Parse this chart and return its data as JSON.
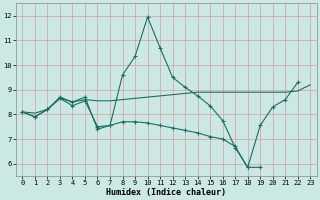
{
  "xlabel": "Humidex (Indice chaleur)",
  "bg_color": "#cce8e4",
  "grid_color": "#d4a0a0",
  "line_color": "#1a6e62",
  "xlim": [
    -0.5,
    23.5
  ],
  "ylim": [
    5.5,
    12.5
  ],
  "yticks": [
    6,
    7,
    8,
    9,
    10,
    11,
    12
  ],
  "xticks": [
    0,
    1,
    2,
    3,
    4,
    5,
    6,
    7,
    8,
    9,
    10,
    11,
    12,
    13,
    14,
    15,
    16,
    17,
    18,
    19,
    20,
    21,
    22,
    23
  ],
  "line1_x": [
    0,
    1,
    2,
    3,
    4,
    5,
    6,
    7,
    8,
    9,
    10,
    11,
    12,
    13,
    14,
    15,
    16,
    17,
    18,
    19,
    20,
    21,
    22
  ],
  "line1_y": [
    8.1,
    7.9,
    8.2,
    8.7,
    8.5,
    8.7,
    7.4,
    7.55,
    9.6,
    10.35,
    11.95,
    10.7,
    9.5,
    9.1,
    8.75,
    8.35,
    7.75,
    6.65,
    5.85,
    7.55,
    8.3,
    8.6,
    9.3
  ],
  "line2_x": [
    0,
    1,
    2,
    3,
    4,
    5,
    6,
    7,
    8,
    9,
    10,
    11,
    12,
    13,
    14,
    15,
    16,
    17,
    18,
    19,
    20,
    21,
    22,
    23
  ],
  "line2_y": [
    8.1,
    8.05,
    8.2,
    8.65,
    8.5,
    8.6,
    8.55,
    8.55,
    8.6,
    8.65,
    8.7,
    8.75,
    8.8,
    8.85,
    8.9,
    8.9,
    8.9,
    8.9,
    8.9,
    8.9,
    8.9,
    8.9,
    8.95,
    9.2
  ],
  "line3_x": [
    0,
    1,
    2,
    3,
    4,
    5,
    6,
    7,
    8,
    9,
    10,
    11,
    12,
    13,
    14,
    15,
    16,
    17,
    18,
    19,
    20,
    21,
    22,
    23
  ],
  "line3_y": [
    8.1,
    7.9,
    8.2,
    8.65,
    8.35,
    8.55,
    7.5,
    7.55,
    7.7,
    7.7,
    7.65,
    7.55,
    7.45,
    7.35,
    7.25,
    7.1,
    7.0,
    6.7,
    5.85,
    5.85,
    null,
    null,
    null,
    null
  ]
}
